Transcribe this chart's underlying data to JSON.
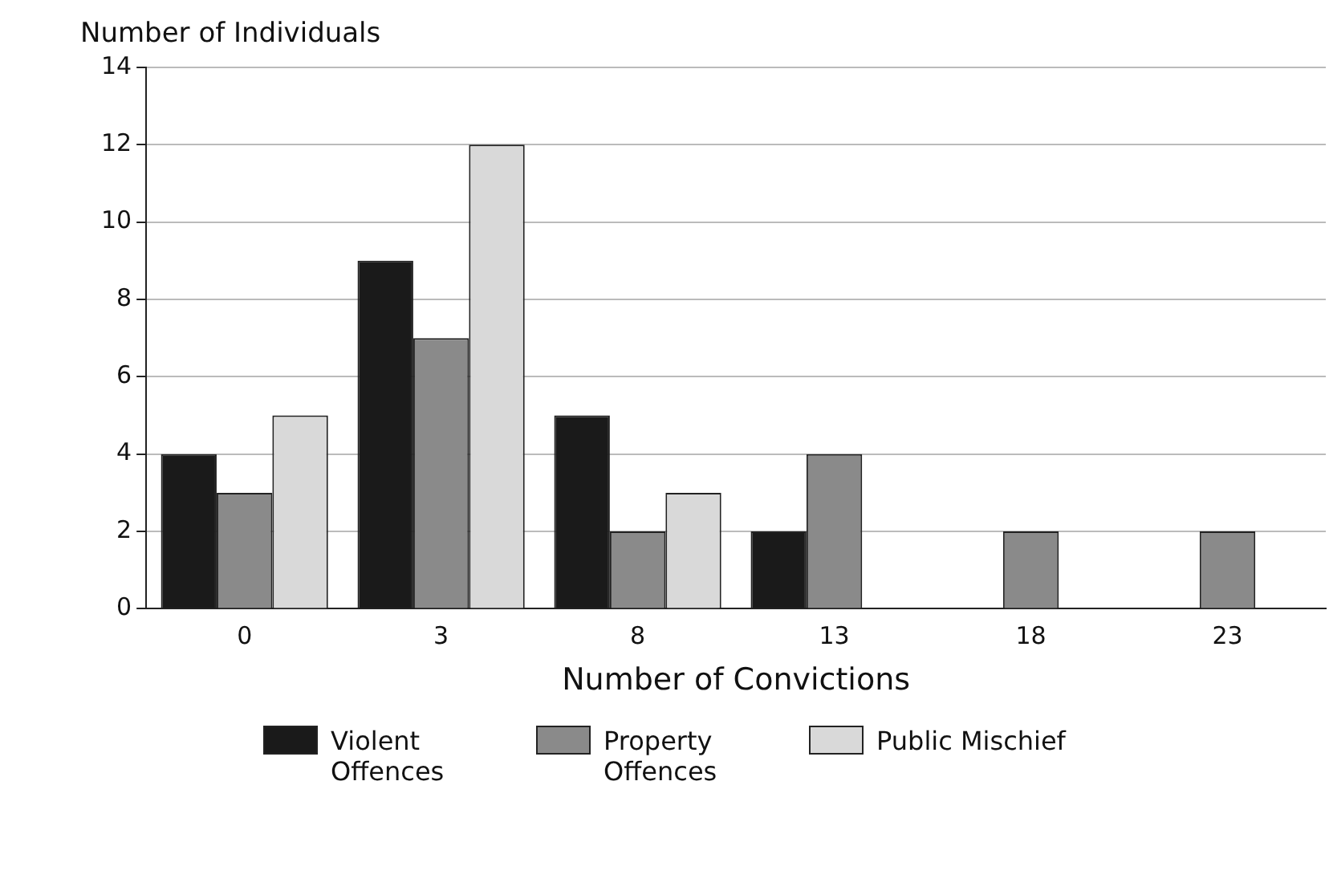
{
  "chart_data": {
    "type": "bar",
    "ylabel": "Number of Individuals",
    "xlabel": "Number of Convictions",
    "categories": [
      "0",
      "3",
      "8",
      "13",
      "18",
      "23"
    ],
    "series": [
      {
        "name": "Violent Offences",
        "color": "#1a1a1a",
        "values": [
          4,
          9,
          5,
          2,
          null,
          null
        ]
      },
      {
        "name": "Property Offences",
        "color": "#8a8a8a",
        "values": [
          3,
          7,
          2,
          4,
          2,
          2
        ]
      },
      {
        "name": "Public Mischief",
        "color": "#d9d9d9",
        "values": [
          5,
          12,
          3,
          null,
          null,
          null
        ]
      }
    ],
    "ylim": [
      0,
      14
    ],
    "yticks": [
      0,
      2,
      4,
      6,
      8,
      10,
      12,
      14
    ],
    "grid": "y",
    "legend": "bottom"
  }
}
